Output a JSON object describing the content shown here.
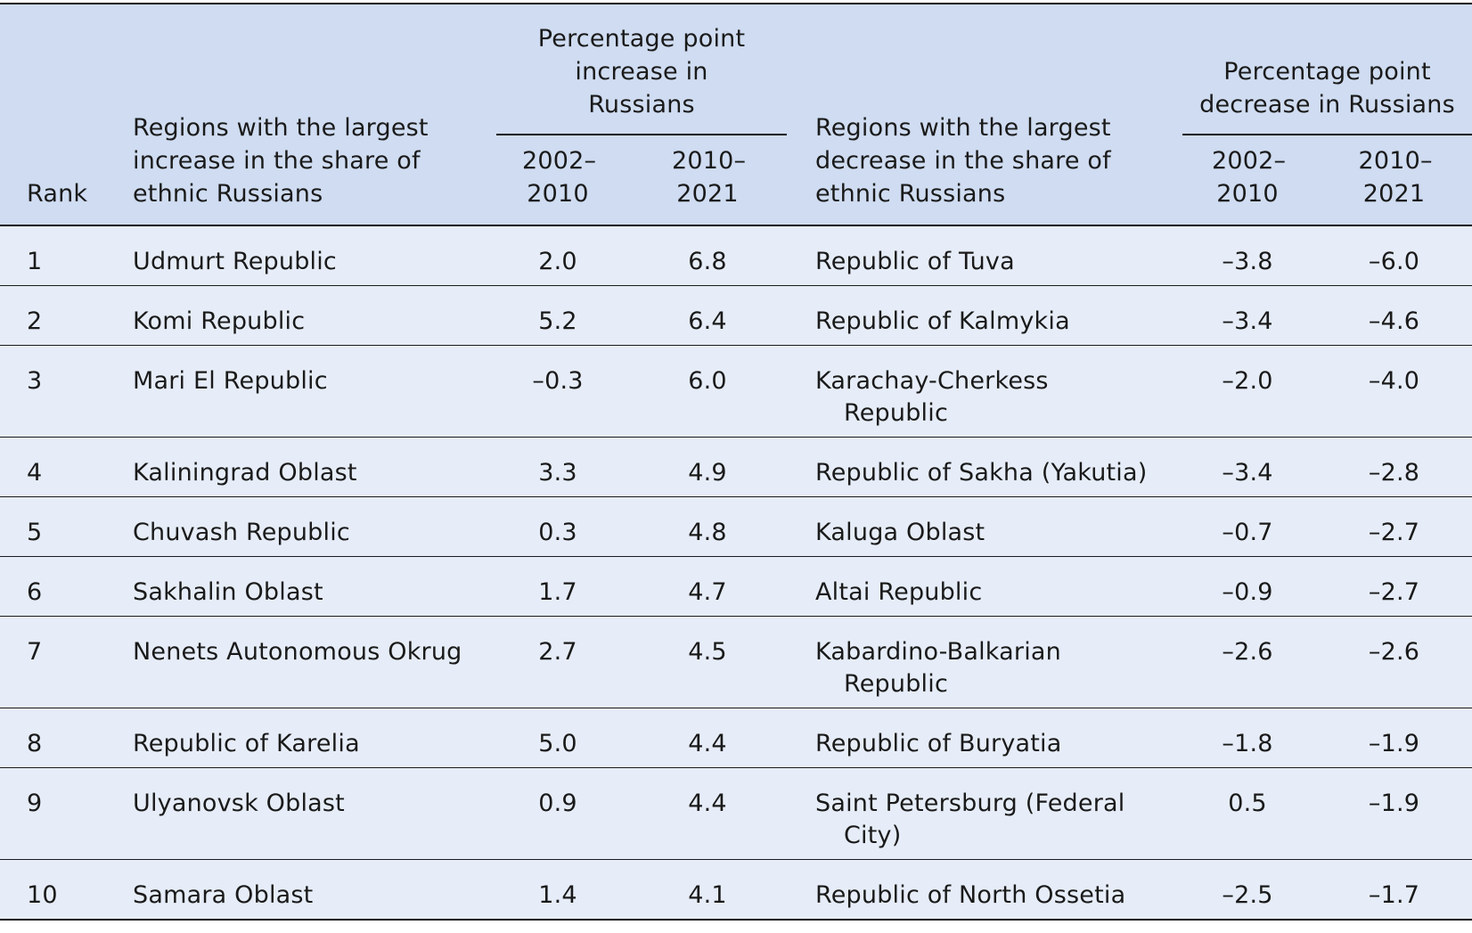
{
  "header": {
    "rank": "Rank",
    "increase_region": "Regions with the largest increase in the share of ethnic Russians",
    "increase_group": "Percentage point increase in Russians",
    "decrease_region": "Regions with the largest decrease in the share of ethnic Russians",
    "decrease_group": "Percentage point decrease in Russians",
    "period_a": "2002–2010",
    "period_b": "2010–2021"
  },
  "rows": [
    {
      "rank": "1",
      "inc_region": "Udmurt Republic",
      "inc_a": "2.0",
      "inc_b": "6.8",
      "dec_region": "Republic of Tuva",
      "dec_a": "–3.8",
      "dec_b": "–6.0"
    },
    {
      "rank": "2",
      "inc_region": "Komi Republic",
      "inc_a": "5.2",
      "inc_b": "6.4",
      "dec_region": "Republic of Kalmykia",
      "dec_a": "–3.4",
      "dec_b": "–4.6"
    },
    {
      "rank": "3",
      "inc_region": "Mari El Republic",
      "inc_a": "–0.3",
      "inc_b": "6.0",
      "dec_region": "Karachay-Cherkess Republic",
      "dec_a": "–2.0",
      "dec_b": "–4.0"
    },
    {
      "rank": "4",
      "inc_region": "Kaliningrad Oblast",
      "inc_a": "3.3",
      "inc_b": "4.9",
      "dec_region": "Republic of Sakha (Yakutia)",
      "dec_a": "–3.4",
      "dec_b": "–2.8"
    },
    {
      "rank": "5",
      "inc_region": "Chuvash Republic",
      "inc_a": "0.3",
      "inc_b": "4.8",
      "dec_region": "Kaluga Oblast",
      "dec_a": "–0.7",
      "dec_b": "–2.7"
    },
    {
      "rank": "6",
      "inc_region": "Sakhalin Oblast",
      "inc_a": "1.7",
      "inc_b": "4.7",
      "dec_region": "Altai Republic",
      "dec_a": "–0.9",
      "dec_b": "–2.7"
    },
    {
      "rank": "7",
      "inc_region": "Nenets Autonomous Okrug",
      "inc_a": "2.7",
      "inc_b": "4.5",
      "dec_region": "Kabardino-Balkarian Republic",
      "dec_a": "–2.6",
      "dec_b": "–2.6"
    },
    {
      "rank": "8",
      "inc_region": "Republic of Karelia",
      "inc_a": "5.0",
      "inc_b": "4.4",
      "dec_region": "Republic of Buryatia",
      "dec_a": "–1.8",
      "dec_b": "–1.9"
    },
    {
      "rank": "9",
      "inc_region": "Ulyanovsk Oblast",
      "inc_a": "0.9",
      "inc_b": "4.4",
      "dec_region": "Saint Petersburg (Federal City)",
      "dec_a": "0.5",
      "dec_b": "–1.9"
    },
    {
      "rank": "10",
      "inc_region": "Samara Oblast",
      "inc_a": "1.4",
      "inc_b": "4.1",
      "dec_region": "Republic of North Ossetia",
      "dec_a": "–2.5",
      "dec_b": "–1.7"
    }
  ]
}
